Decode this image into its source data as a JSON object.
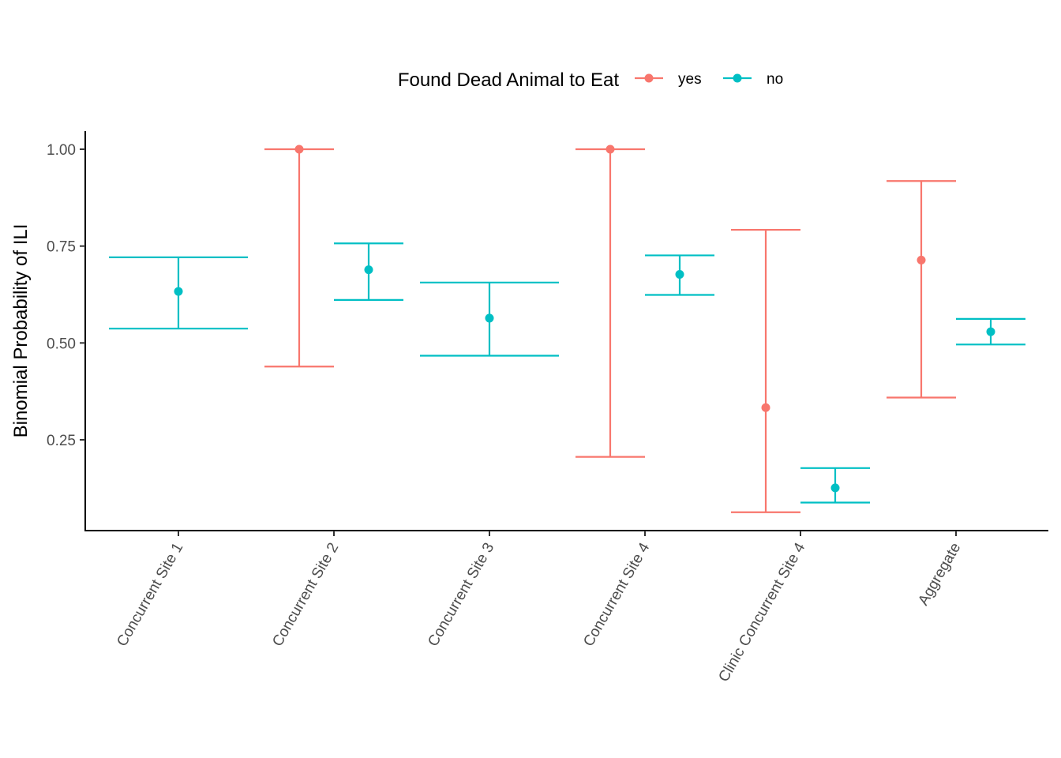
{
  "chart_data": {
    "type": "errorbar",
    "title": "",
    "xlabel": "",
    "ylabel": "Binomial Probability of ILI",
    "ylim": [
      0.0,
      1.0
    ],
    "yticks": [
      0.25,
      0.5,
      0.75,
      1.0
    ],
    "ytick_labels": [
      "0.25",
      "0.50",
      "0.75",
      "1.00"
    ],
    "categories": [
      "Concurrent Site 1",
      "Concurrent Site 2",
      "Concurrent Site 3",
      "Concurrent Site 4",
      "Clinic Concurrent Site 4",
      "Aggregate"
    ],
    "grid": false,
    "legend": {
      "title": "Found Dead Animal to Eat",
      "position": "top",
      "entries": [
        "yes",
        "no"
      ]
    },
    "series": [
      {
        "name": "yes",
        "color": "#F8766D",
        "points": [
          {
            "category": "Concurrent Site 2",
            "estimate": 1.0,
            "lower": 0.439,
            "upper": 1.0
          },
          {
            "category": "Concurrent Site 4",
            "estimate": 1.0,
            "lower": 0.206,
            "upper": 1.0
          },
          {
            "category": "Clinic Concurrent Site 4",
            "estimate": 0.333,
            "lower": 0.063,
            "upper": 0.792
          },
          {
            "category": "Aggregate",
            "estimate": 0.714,
            "lower": 0.359,
            "upper": 0.918
          }
        ]
      },
      {
        "name": "no",
        "color": "#00BFC4",
        "points": [
          {
            "category": "Concurrent Site 1",
            "estimate": 0.633,
            "lower": 0.537,
            "upper": 0.721
          },
          {
            "category": "Concurrent Site 2",
            "estimate": 0.689,
            "lower": 0.611,
            "upper": 0.757
          },
          {
            "category": "Concurrent Site 3",
            "estimate": 0.564,
            "lower": 0.467,
            "upper": 0.656
          },
          {
            "category": "Concurrent Site 4",
            "estimate": 0.677,
            "lower": 0.624,
            "upper": 0.726
          },
          {
            "category": "Clinic Concurrent Site 4",
            "estimate": 0.126,
            "lower": 0.088,
            "upper": 0.177
          },
          {
            "category": "Aggregate",
            "estimate": 0.529,
            "lower": 0.496,
            "upper": 0.562
          }
        ]
      }
    ]
  }
}
